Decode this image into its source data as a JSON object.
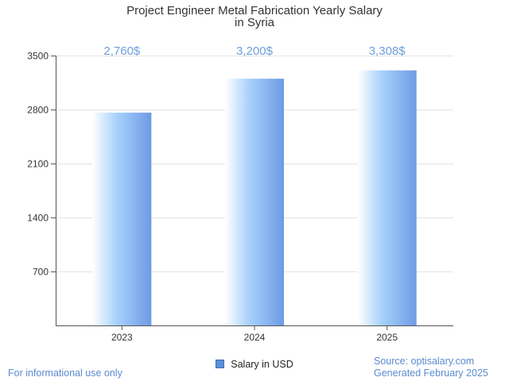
{
  "chart_data": {
    "type": "bar",
    "title": [
      "Project Engineer Metal Fabrication Yearly Salary",
      "in Syria"
    ],
    "categories": [
      "2023",
      "2024",
      "2025"
    ],
    "series": [
      {
        "name": "Salary in USD",
        "values": [
          2760,
          3200,
          3308
        ]
      }
    ],
    "data_labels": [
      "2,760$",
      "3,200$",
      "3,308$"
    ],
    "yticks": [
      700,
      1400,
      2100,
      2800,
      3500
    ],
    "ylim": [
      0,
      3500
    ],
    "grid": true,
    "legend_position": "bottom"
  },
  "colors": {
    "bar_light": "#ffffff",
    "bar_mid": "#a9d2fb",
    "bar_dark": "#6d9ae6",
    "data_label": "#6c9fdc"
  },
  "footer": {
    "left": "For informational use only",
    "source": "Source: optisalary.com",
    "generated": "Generated February 2025"
  }
}
